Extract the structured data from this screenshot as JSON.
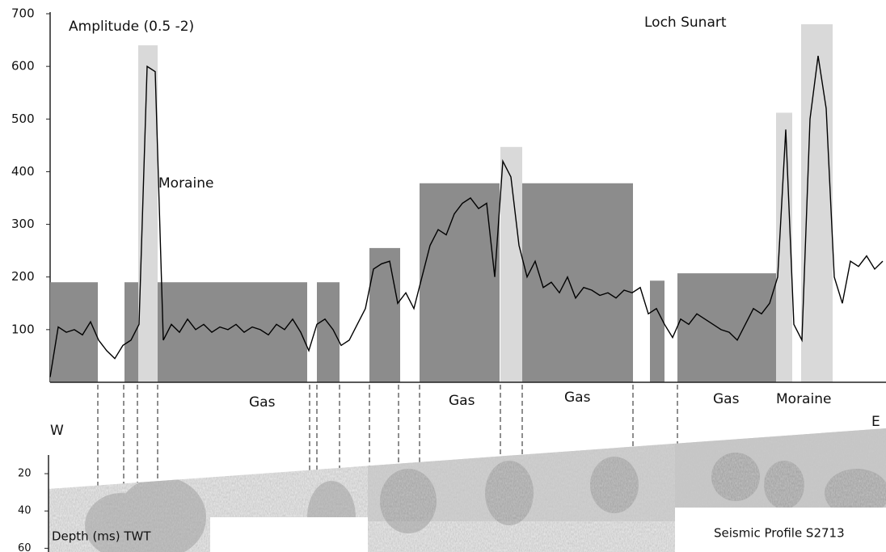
{
  "chart_data": {
    "type": "line",
    "title": "Loch Sunart",
    "subtitle": "Amplitude (0.5 -2)",
    "values": [
      10,
      105,
      95,
      100,
      90,
      115,
      80,
      60,
      45,
      70,
      80,
      110,
      600,
      590,
      80,
      110,
      95,
      120,
      100,
      110,
      95,
      105,
      100,
      110,
      95,
      105,
      100,
      90,
      110,
      100,
      120,
      95,
      60,
      110,
      120,
      100,
      70,
      80,
      110,
      140,
      215,
      225,
      230,
      150,
      170,
      140,
      200,
      260,
      290,
      280,
      320,
      340,
      350,
      330,
      340,
      200,
      420,
      390,
      260,
      200,
      230,
      180,
      190,
      170,
      200,
      160,
      180,
      175,
      165,
      170,
      160,
      175,
      170,
      180,
      130,
      140,
      110,
      85,
      120,
      110,
      130,
      120,
      110,
      100,
      95,
      80,
      110,
      140,
      130,
      150,
      200,
      480,
      110,
      80,
      500,
      620,
      520,
      200,
      150,
      230,
      220,
      240,
      215,
      230
    ],
    "color": "#000000",
    "ylim": [
      0,
      700
    ],
    "yticks": [
      100,
      200,
      300,
      400,
      500,
      600,
      700
    ],
    "zones": {
      "values": [
        190,
        190,
        190,
        255,
        378,
        378,
        193,
        207
      ],
      "color": "#8c8c8c"
    },
    "peaks": {
      "values": [
        640,
        447,
        512,
        680
      ],
      "color": "#d9d9d9"
    },
    "annotations": [
      "Moraine",
      "Gas",
      "Gas",
      "Gas",
      "Gas",
      "Moraine"
    ],
    "profile": {
      "axis_label": "Depth (ms) TWT",
      "title": "Seismic Profile  S2713",
      "west": "W",
      "east": "E",
      "ylim": [
        10,
        62
      ],
      "yticks": [
        20,
        40,
        60
      ]
    }
  }
}
